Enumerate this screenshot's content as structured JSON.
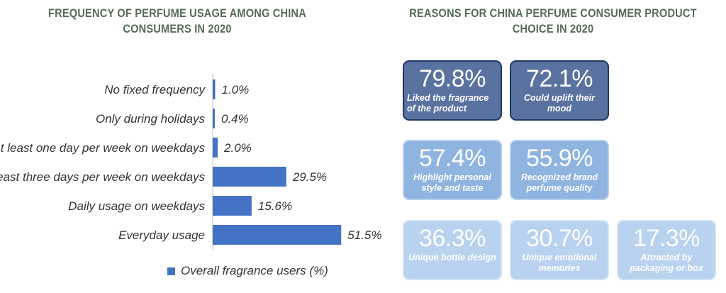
{
  "left_title": "FREQUENCY OF PERFUME USAGE AMONG CHINA CONSUMERS IN 2020",
  "right_title": "REASONS FOR CHINA PERFUME CONSUMER PRODUCT CHOICE IN 2020",
  "legend_label": "Overall fragrance users (%)",
  "colors": {
    "bar": "#4472c4",
    "title": "#556b57",
    "tile_dark": "#5a72a0",
    "tile_medium": "#8fb4e0",
    "tile_light": "#b9d2ef"
  },
  "chart_data": [
    {
      "type": "bar",
      "orientation": "horizontal",
      "title": "FREQUENCY OF PERFUME USAGE AMONG CHINA CONSUMERS IN 2020",
      "categories": [
        "No fixed frequency",
        "Only during holidays",
        "At least one day per week on weekdays",
        "At least three days per week on weekdays",
        "Daily usage on weekdays",
        "Everyday usage"
      ],
      "series": [
        {
          "name": "Overall fragrance users (%)",
          "values": [
            1.0,
            0.4,
            2.0,
            29.5,
            15.6,
            51.5
          ]
        }
      ],
      "value_labels": [
        "1.0%",
        "0.4%",
        "2.0%",
        "29.5%",
        "15.6%",
        "51.5%"
      ],
      "legend": "bottom",
      "grid": false
    },
    {
      "type": "table",
      "title": "REASONS FOR CHINA PERFUME CONSUMER PRODUCT CHOICE IN 2020",
      "items": [
        {
          "value": "79.8%",
          "label": "Liked the fragrance of the product",
          "shade": "dark"
        },
        {
          "value": "72.1%",
          "label": "Could uplift their mood",
          "shade": "dark"
        },
        {
          "value": "57.4%",
          "label": "Highlight personal style and taste",
          "shade": "medium"
        },
        {
          "value": "55.9%",
          "label": "Recognized brand perfume quality",
          "shade": "medium"
        },
        {
          "value": "36.3%",
          "label": "Unique bottle design",
          "shade": "light"
        },
        {
          "value": "30.7%",
          "label": "Unique emotional memories",
          "shade": "light"
        },
        {
          "value": "17.3%",
          "label": "Attracted by packaging or box",
          "shade": "light"
        }
      ]
    }
  ]
}
